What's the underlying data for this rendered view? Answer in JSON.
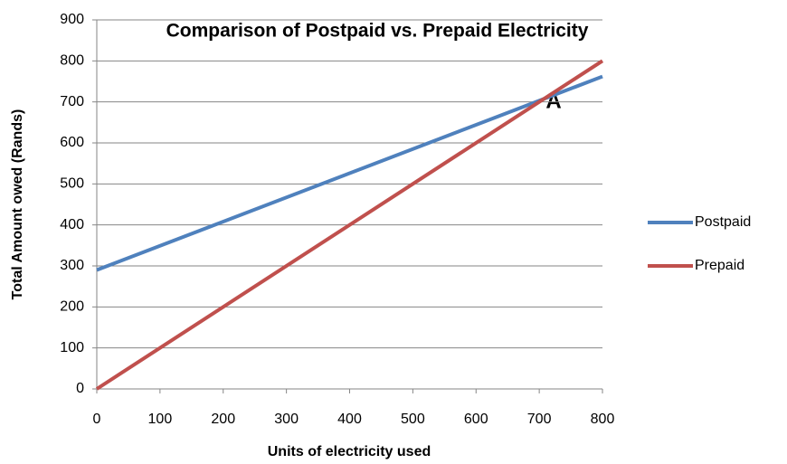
{
  "chart_data": {
    "type": "line",
    "title": "Comparison of Postpaid vs. Prepaid Electricity",
    "x_label": "Units of electricity used",
    "y_label": "Total Amount owed (Rands)",
    "x": [
      0,
      800
    ],
    "series": [
      {
        "name": "Postpaid",
        "color": "#4f81bd",
        "values": [
          290,
          762
        ]
      },
      {
        "name": "Prepaid",
        "color": "#c0504d",
        "values": [
          0,
          800
        ]
      }
    ],
    "xlim": [
      0,
      800
    ],
    "xticks": [
      0,
      100,
      200,
      300,
      400,
      500,
      600,
      700,
      800
    ],
    "ylim": [
      0,
      900
    ],
    "yticks": [
      0,
      100,
      200,
      300,
      400,
      500,
      600,
      700,
      800,
      900
    ],
    "grid": true,
    "legend": "right",
    "annotation": "A"
  }
}
